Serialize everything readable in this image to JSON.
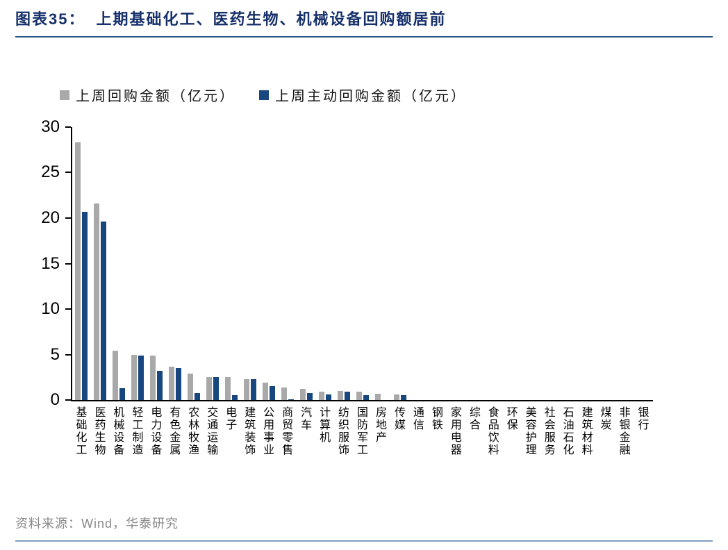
{
  "figure": {
    "label": "图表35：",
    "title": "上期基础化工、医药生物、机械设备回购额居前",
    "source": "资料来源：Wind，华泰研究",
    "accent_color": "#2a5485",
    "footer_rule_color": "#7f9dbd",
    "title_color": "#16306b"
  },
  "chart_data": {
    "type": "bar",
    "title": "上期基础化工、医药生物、机械设备回购额居前",
    "xlabel": "",
    "ylabel": "",
    "ylim": [
      0,
      30
    ],
    "yticks": [
      0,
      5,
      10,
      15,
      20,
      25,
      30
    ],
    "grid": false,
    "legend_position": "top",
    "categories": [
      "基础化工",
      "医药生物",
      "机械设备",
      "轻工制造",
      "电力设备",
      "有色金属",
      "农林牧渔",
      "交通运输",
      "电子",
      "建筑装饰",
      "公用事业",
      "商贸零售",
      "汽车",
      "计算机",
      "纺织服饰",
      "国防军工",
      "房地产",
      "传媒",
      "通信",
      "钢铁",
      "家用电器",
      "综合",
      "食品饮料",
      "环保",
      "美容护理",
      "社会服务",
      "石油石化",
      "建筑材料",
      "煤炭",
      "非银金融",
      "银行"
    ],
    "series": [
      {
        "name": "上周回购金额（亿元）",
        "color": "#a9a9a9",
        "values": [
          28.3,
          21.6,
          5.4,
          5.0,
          4.9,
          3.7,
          2.9,
          2.5,
          2.5,
          2.3,
          1.9,
          1.4,
          1.2,
          0.9,
          1.0,
          0.9,
          0.7,
          0.6,
          0,
          0,
          0,
          0,
          0,
          0,
          0,
          0,
          0,
          0,
          0,
          0,
          0
        ]
      },
      {
        "name": "上周主动回购金额（亿元）",
        "color": "#17477e",
        "values": [
          20.7,
          19.6,
          1.3,
          4.9,
          3.2,
          3.5,
          0.8,
          2.5,
          0.5,
          2.3,
          1.5,
          0.1,
          0.8,
          0.6,
          0.9,
          0.5,
          0,
          0.5,
          0,
          0,
          0,
          0,
          0,
          0,
          0,
          0,
          0,
          0,
          0,
          0,
          0
        ]
      }
    ]
  }
}
